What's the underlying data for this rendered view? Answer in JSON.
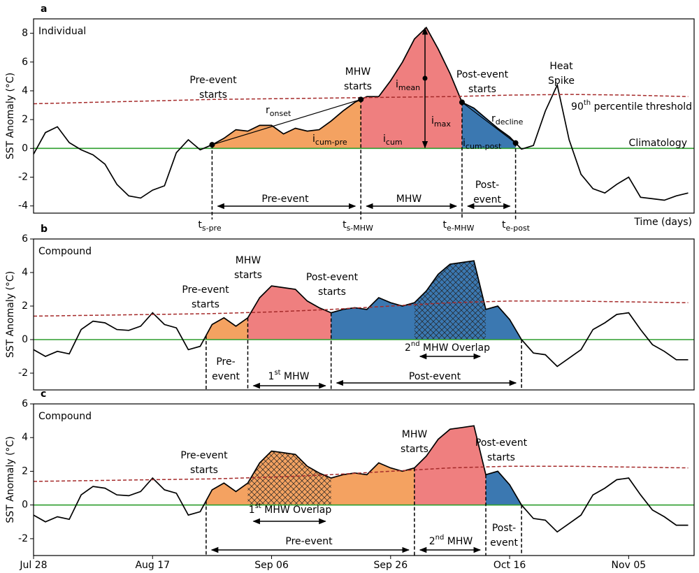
{
  "chart_data": [
    {
      "type": "line",
      "panel_label": "a",
      "title": "Individual",
      "ylabel": "SST Anomaly (°C)",
      "xlabel": "Time (days)",
      "xlim": [
        0,
        111
      ],
      "ylim": [
        -4.5,
        9
      ],
      "yticks": [
        -4,
        -2,
        0,
        2,
        4,
        6,
        8
      ],
      "baseline_color": "#2e9e2e",
      "x": [
        0,
        2,
        4,
        6,
        8,
        10,
        12,
        14,
        16,
        18,
        20,
        22,
        24,
        26,
        28,
        30,
        32,
        34,
        36,
        38,
        40,
        42,
        44,
        46,
        48,
        50,
        52,
        54,
        56,
        58,
        60,
        62,
        64,
        66,
        68,
        70,
        72,
        74,
        76,
        78,
        80,
        82,
        84,
        86,
        88,
        90,
        92,
        94,
        96,
        98,
        100,
        102,
        104,
        106,
        108,
        110
      ],
      "series": [
        {
          "color": "#000000",
          "values": [
            -0.4,
            1.1,
            1.5,
            0.4,
            -0.1,
            -0.45,
            -1.1,
            -2.5,
            -3.3,
            -3.45,
            -2.9,
            -2.6,
            -0.3,
            0.6,
            -0.1,
            0.25,
            0.7,
            1.3,
            1.2,
            1.6,
            1.6,
            1.0,
            1.4,
            1.2,
            1.3,
            1.9,
            2.6,
            3.2,
            3.6,
            3.6,
            4.7,
            6.0,
            7.6,
            8.4,
            6.9,
            5.2,
            3.2,
            2.8,
            2.1,
            1.4,
            0.8,
            -0.05,
            0.2,
            2.6,
            4.4,
            0.6,
            -1.8,
            -2.8,
            -3.1,
            -2.5,
            -2.0,
            -3.4,
            -3.5,
            -3.6,
            -3.3,
            -3.1
          ]
        },
        {
          "color": "#a52a2a",
          "dashed": true,
          "x": [
            0,
            10,
            20,
            30,
            40,
            50,
            60,
            70,
            80,
            90,
            100,
            110
          ],
          "values": [
            3.1,
            3.2,
            3.3,
            3.4,
            3.45,
            3.5,
            3.55,
            3.6,
            3.7,
            3.75,
            3.7,
            3.6
          ]
        }
      ],
      "phases": [
        {
          "start": 30,
          "end": 55,
          "color": "#f4a261"
        },
        {
          "start": 55,
          "end": 72,
          "color": "#ef7f7f"
        },
        {
          "start": 72,
          "end": 81,
          "color": "#3b78b1"
        }
      ],
      "annotations": [
        {
          "text": [
            "Pre-event",
            "starts"
          ]
        },
        {
          "text": [
            "MHW",
            "starts"
          ]
        },
        {
          "text": [
            "Post-event",
            "starts"
          ]
        },
        {
          "text": [
            "Heat",
            "Spike"
          ]
        },
        {
          "text": [
            "r"
          ],
          "sub": "onset"
        },
        {
          "text": [
            "r"
          ],
          "sub": "decline"
        },
        {
          "text": [
            "i"
          ],
          "sub": "mean"
        },
        {
          "text": [
            "i"
          ],
          "sub": "max"
        },
        {
          "text": [
            "i"
          ],
          "sub": "cum"
        },
        {
          "text": [
            "i"
          ],
          "sub": "cum-pre"
        },
        {
          "text": [
            "i"
          ],
          "sub": "cum-post"
        },
        {
          "text": [
            "90"
          ],
          "sup": "th",
          "tail": " percentile threshold"
        },
        {
          "text": [
            "Climatology"
          ]
        },
        {
          "text": [
            "Pre-event"
          ]
        },
        {
          "text": [
            "MHW"
          ]
        },
        {
          "text": [
            "Post-",
            "event"
          ]
        },
        {
          "text": [
            "t"
          ],
          "sub": "s-pre"
        },
        {
          "text": [
            "t"
          ],
          "sub": "s-MHW"
        },
        {
          "text": [
            "t"
          ],
          "sub": "e-MHW"
        },
        {
          "text": [
            "t"
          ],
          "sub": "e-post"
        }
      ]
    },
    {
      "type": "line",
      "panel_label": "b",
      "title": "Compound",
      "ylabel": "SST Anomaly (°C)",
      "xlim": [
        0,
        111
      ],
      "ylim": [
        -3,
        6
      ],
      "yticks": [
        -2,
        0,
        2,
        4,
        6
      ],
      "baseline_color": "#2e9e2e",
      "x": [
        0,
        2,
        4,
        6,
        8,
        10,
        12,
        14,
        16,
        18,
        20,
        22,
        24,
        26,
        28,
        30,
        32,
        34,
        36,
        38,
        40,
        42,
        44,
        46,
        48,
        50,
        52,
        54,
        56,
        58,
        60,
        62,
        64,
        66,
        68,
        70,
        72,
        74,
        76,
        78,
        80,
        82,
        84,
        86,
        88,
        90,
        92,
        94,
        96,
        98,
        100,
        102,
        104,
        106,
        108,
        110
      ],
      "series": [
        {
          "color": "#000000",
          "values": [
            -0.6,
            -1.0,
            -0.7,
            -0.85,
            0.6,
            1.1,
            1.0,
            0.6,
            0.55,
            0.8,
            1.6,
            0.9,
            0.7,
            -0.6,
            -0.4,
            0.9,
            1.3,
            0.8,
            1.3,
            2.5,
            3.2,
            3.1,
            3.0,
            2.3,
            1.9,
            1.6,
            1.8,
            1.9,
            1.8,
            2.5,
            2.2,
            2.0,
            2.2,
            2.9,
            3.9,
            4.5,
            4.6,
            4.7,
            1.8,
            2.0,
            1.2,
            0.0,
            -0.8,
            -0.9,
            -1.6,
            -1.1,
            -0.6,
            0.6,
            1.0,
            1.5,
            1.6,
            0.6,
            -0.3,
            -0.7,
            -1.2,
            -1.2
          ]
        },
        {
          "color": "#a52a2a",
          "dashed": true,
          "x": [
            0,
            10,
            20,
            30,
            40,
            50,
            60,
            70,
            80,
            90,
            100,
            110
          ],
          "values": [
            1.4,
            1.45,
            1.5,
            1.55,
            1.65,
            1.8,
            2.0,
            2.2,
            2.3,
            2.3,
            2.25,
            2.2
          ]
        }
      ],
      "phases": [
        {
          "start": 29,
          "end": 36,
          "color": "#f4a261"
        },
        {
          "start": 36,
          "end": 50,
          "color": "#ef7f7f"
        },
        {
          "start": 50,
          "end": 82,
          "color": "#3b78b1"
        }
      ],
      "overlap": {
        "start": 64,
        "end": 76
      },
      "annotations": [
        {
          "text": [
            "Pre-event",
            "starts"
          ]
        },
        {
          "text": [
            "MHW",
            "starts"
          ]
        },
        {
          "text": [
            "Post-event",
            "starts"
          ]
        },
        {
          "text": [
            "Pre-",
            "event"
          ]
        },
        {
          "text": [
            "1"
          ],
          "sup": "st",
          "tail": " MHW"
        },
        {
          "text": [
            "Post-event"
          ]
        },
        {
          "text": [
            "2"
          ],
          "sup": "nd",
          "tail": " MHW Overlap"
        }
      ]
    },
    {
      "type": "line",
      "panel_label": "c",
      "title": "Compound",
      "ylabel": "SST Anomaly (°C)",
      "xlim": [
        0,
        111
      ],
      "ylim": [
        -3,
        6
      ],
      "yticks": [
        -2,
        0,
        2,
        4,
        6
      ],
      "baseline_color": "#2e9e2e",
      "xticks": [
        {
          "value": 0,
          "label": "Jul 28"
        },
        {
          "value": 20,
          "label": "Aug 17"
        },
        {
          "value": 40,
          "label": "Sep 06"
        },
        {
          "value": 60,
          "label": "Sep 26"
        },
        {
          "value": 80,
          "label": "Oct 16"
        },
        {
          "value": 100,
          "label": "Nov 05"
        }
      ],
      "x": [
        0,
        2,
        4,
        6,
        8,
        10,
        12,
        14,
        16,
        18,
        20,
        22,
        24,
        26,
        28,
        30,
        32,
        34,
        36,
        38,
        40,
        42,
        44,
        46,
        48,
        50,
        52,
        54,
        56,
        58,
        60,
        62,
        64,
        66,
        68,
        70,
        72,
        74,
        76,
        78,
        80,
        82,
        84,
        86,
        88,
        90,
        92,
        94,
        96,
        98,
        100,
        102,
        104,
        106,
        108,
        110
      ],
      "series": [
        {
          "color": "#000000",
          "values": [
            -0.6,
            -1.0,
            -0.7,
            -0.85,
            0.6,
            1.1,
            1.0,
            0.6,
            0.55,
            0.8,
            1.6,
            0.9,
            0.7,
            -0.6,
            -0.4,
            0.9,
            1.3,
            0.8,
            1.3,
            2.5,
            3.2,
            3.1,
            3.0,
            2.3,
            1.9,
            1.6,
            1.8,
            1.9,
            1.8,
            2.5,
            2.2,
            2.0,
            2.2,
            2.9,
            3.9,
            4.5,
            4.6,
            4.7,
            1.8,
            2.0,
            1.2,
            0.0,
            -0.8,
            -0.9,
            -1.6,
            -1.1,
            -0.6,
            0.6,
            1.0,
            1.5,
            1.6,
            0.6,
            -0.3,
            -0.7,
            -1.2,
            -1.2
          ]
        },
        {
          "color": "#a52a2a",
          "dashed": true,
          "x": [
            0,
            10,
            20,
            30,
            40,
            50,
            60,
            70,
            80,
            90,
            100,
            110
          ],
          "values": [
            1.4,
            1.45,
            1.5,
            1.55,
            1.65,
            1.8,
            2.0,
            2.2,
            2.3,
            2.3,
            2.25,
            2.2
          ]
        }
      ],
      "phases": [
        {
          "start": 29,
          "end": 64,
          "color": "#f4a261"
        },
        {
          "start": 64,
          "end": 76,
          "color": "#ef7f7f"
        },
        {
          "start": 76,
          "end": 82,
          "color": "#3b78b1"
        }
      ],
      "overlap": {
        "start": 36,
        "end": 50
      },
      "annotations": [
        {
          "text": [
            "Pre-event",
            "starts"
          ]
        },
        {
          "text": [
            "MHW",
            "starts"
          ]
        },
        {
          "text": [
            "Post-event",
            "starts"
          ]
        },
        {
          "text": [
            "1"
          ],
          "sup": "st",
          "tail": " MHW Overlap"
        },
        {
          "text": [
            "Pre-event"
          ]
        },
        {
          "text": [
            "2"
          ],
          "sup": "nd",
          "tail": " MHW"
        },
        {
          "text": [
            "Post-",
            "event"
          ]
        }
      ]
    }
  ]
}
